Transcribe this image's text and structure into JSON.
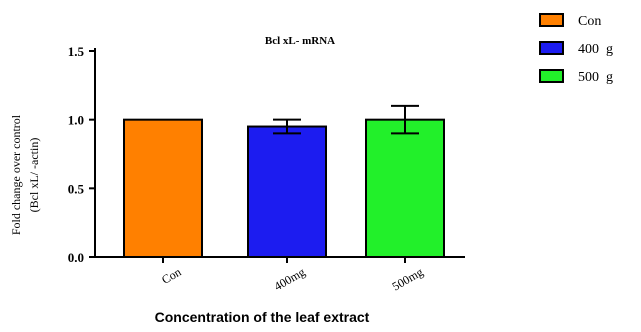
{
  "chart_data": {
    "type": "bar",
    "title": "Bcl xL- mRNA",
    "ylabel_line1": "Fold change over control",
    "ylabel_line2": "(Bcl xL/   -actin)",
    "xlabel": "Concentration of the leaf extract",
    "categories": [
      "Con",
      "400mg",
      "500mg"
    ],
    "values": [
      1.0,
      0.95,
      1.0
    ],
    "errors": [
      0.0,
      0.05,
      0.1
    ],
    "colors": [
      "#ff8000",
      "#1c1cf0",
      "#22f02a"
    ],
    "ylim": [
      0.0,
      1.5
    ],
    "yticks": [
      "0.0",
      "0.5",
      "1.0",
      "1.5"
    ],
    "legend": [
      "Con",
      "400  g",
      "500  g"
    ],
    "legend_position": "top-right"
  }
}
